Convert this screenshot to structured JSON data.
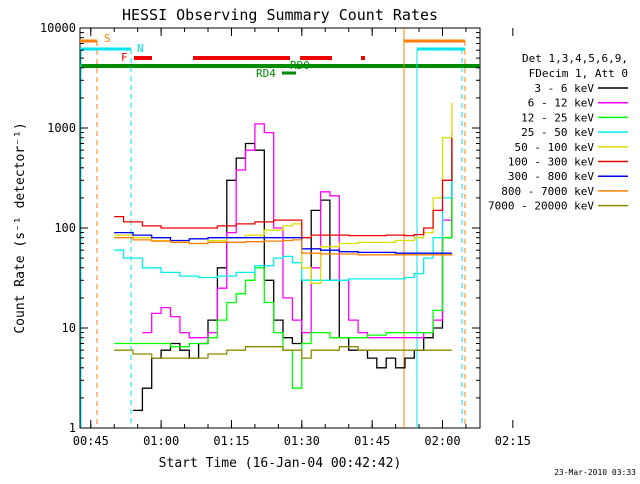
{
  "chart_data": {
    "type": "line",
    "title": "HESSI Observing Summary Count Rates",
    "xlabel": "Start Time (16-Jan-04 00:42:42)",
    "ylabel": "Count Rate (s⁻¹ detector⁻¹)",
    "yscale": "log",
    "ylim": [
      1,
      10000
    ],
    "xlim_minutes_after_00_00": [
      42.7,
      128.0
    ],
    "x_tick_labels": [
      "00:45",
      "01:00",
      "01:15",
      "01:30",
      "01:45",
      "02:00",
      "02:15"
    ],
    "y_tick_labels": [
      "1",
      "10",
      "100",
      "1000",
      "10000"
    ],
    "legend_header": [
      "Det 1,3,4,5,6,9,",
      "FDecim 1, Att 0"
    ],
    "footer_text": "23-Mar-2010 03:33",
    "flag_labels": {
      "saa": "S",
      "night": "N",
      "flare": "F",
      "rd0": "RD0",
      "rd4": "RD4"
    },
    "flag_colors": {
      "saa": "#ff7f00",
      "night": "#00e5ee",
      "flare": "#ee0000",
      "rd": "#008b00"
    },
    "series": [
      {
        "name": "3 - 6 keV",
        "color": "#000000",
        "x": [
          54,
          56,
          58,
          60,
          62,
          64,
          66,
          68,
          70,
          72,
          74,
          76,
          78,
          80,
          82,
          84,
          86,
          88,
          90,
          92,
          94,
          96,
          98,
          100,
          102,
          104,
          106,
          108,
          110,
          112,
          114,
          116,
          118,
          120,
          122
        ],
        "values": [
          1.5,
          2.5,
          5,
          6,
          7,
          6,
          5,
          7,
          12,
          40,
          300,
          500,
          700,
          600,
          30,
          12,
          8,
          7,
          30,
          150,
          190,
          30,
          8,
          6,
          6,
          5,
          4,
          5,
          4,
          5,
          6,
          8,
          10,
          80,
          500
        ]
      },
      {
        "name": "6 - 12 keV",
        "color": "#ff00ff",
        "x": [
          56,
          58,
          60,
          62,
          64,
          66,
          68,
          70,
          72,
          74,
          76,
          78,
          80,
          82,
          84,
          86,
          88,
          90,
          92,
          94,
          96,
          98,
          100,
          102,
          104,
          106,
          108,
          110,
          112,
          114,
          116,
          118,
          120,
          122
        ],
        "values": [
          9,
          14,
          16,
          13,
          9,
          8,
          8,
          9,
          25,
          90,
          380,
          600,
          1100,
          900,
          100,
          20,
          12,
          9,
          40,
          230,
          210,
          30,
          12,
          9,
          8,
          8,
          8,
          8,
          8,
          8,
          9,
          12,
          120,
          900
        ]
      },
      {
        "name": "12 - 25 keV",
        "color": "#00ff00",
        "x": [
          50,
          54,
          58,
          62,
          66,
          70,
          72,
          74,
          76,
          78,
          80,
          82,
          84,
          86,
          88,
          90,
          92,
          94,
          96,
          98,
          100,
          104,
          108,
          112,
          116,
          118,
          120,
          122
        ],
        "values": [
          7,
          7,
          7,
          6.5,
          7,
          8,
          12,
          18,
          22,
          30,
          40,
          18,
          9,
          6,
          2.5,
          7,
          9,
          9,
          8,
          8,
          8,
          8.5,
          9,
          9,
          9,
          15,
          80,
          700
        ]
      },
      {
        "name": "25 - 50 keV",
        "color": "#00eeee",
        "x": [
          50,
          52,
          56,
          60,
          64,
          68,
          72,
          76,
          80,
          84,
          86,
          88,
          90,
          92,
          96,
          100,
          104,
          108,
          112,
          114,
          116,
          118,
          120,
          122
        ],
        "values": [
          60,
          50,
          40,
          36,
          33,
          32,
          33,
          36,
          42,
          50,
          52,
          45,
          30,
          30,
          30,
          31,
          31,
          31,
          32,
          35,
          50,
          80,
          200,
          600
        ]
      },
      {
        "name": "50 - 100 keV",
        "color": "#dddd00",
        "x": [
          50,
          54,
          58,
          62,
          66,
          70,
          74,
          78,
          82,
          86,
          88,
          90,
          92,
          94,
          98,
          102,
          106,
          110,
          114,
          116,
          118,
          120,
          122
        ],
        "values": [
          85,
          80,
          75,
          72,
          70,
          75,
          80,
          85,
          95,
          105,
          110,
          40,
          28,
          65,
          70,
          72,
          72,
          75,
          80,
          90,
          200,
          800,
          1800
        ]
      },
      {
        "name": "100 - 300 keV",
        "color": "#ee0000",
        "x": [
          50,
          52,
          56,
          60,
          64,
          68,
          72,
          76,
          80,
          84,
          88,
          90,
          92,
          96,
          100,
          104,
          108,
          112,
          114,
          116,
          118,
          120,
          122
        ],
        "values": [
          130,
          115,
          105,
          100,
          100,
          100,
          105,
          110,
          115,
          120,
          120,
          80,
          85,
          85,
          84,
          84,
          85,
          84,
          86,
          100,
          150,
          300,
          800
        ]
      },
      {
        "name": "300 - 800 keV",
        "color": "#0000ee",
        "x": [
          50,
          54,
          58,
          62,
          66,
          70,
          74,
          78,
          82,
          86,
          88,
          90,
          94,
          98,
          102,
          106,
          110,
          114,
          118,
          120,
          122
        ],
        "values": [
          90,
          85,
          80,
          75,
          78,
          80,
          80,
          80,
          80,
          80,
          80,
          62,
          60,
          58,
          57,
          57,
          56,
          56,
          56,
          56,
          56
        ]
      },
      {
        "name": "800 - 7000 keV",
        "color": "#ff7f00",
        "x": [
          50,
          54,
          58,
          62,
          66,
          70,
          74,
          78,
          82,
          86,
          88,
          90,
          94,
          98,
          102,
          106,
          110,
          114,
          118,
          120,
          122
        ],
        "values": [
          80,
          76,
          74,
          72,
          70,
          72,
          72,
          73,
          74,
          75,
          76,
          56,
          55,
          55,
          54,
          54,
          54,
          54,
          54,
          54,
          55
        ]
      },
      {
        "name": "7000 - 20000 keV",
        "color": "#8b8b00",
        "x": [
          50,
          54,
          58,
          62,
          66,
          70,
          74,
          78,
          82,
          86,
          88,
          90,
          92,
          94,
          98,
          102,
          106,
          110,
          114,
          118,
          120,
          122
        ],
        "values": [
          6,
          5.5,
          5,
          5,
          5,
          5.5,
          6,
          6.5,
          6.5,
          6,
          6,
          5,
          6,
          6,
          6.5,
          6,
          6,
          6,
          6,
          6,
          6,
          6
        ]
      }
    ]
  }
}
